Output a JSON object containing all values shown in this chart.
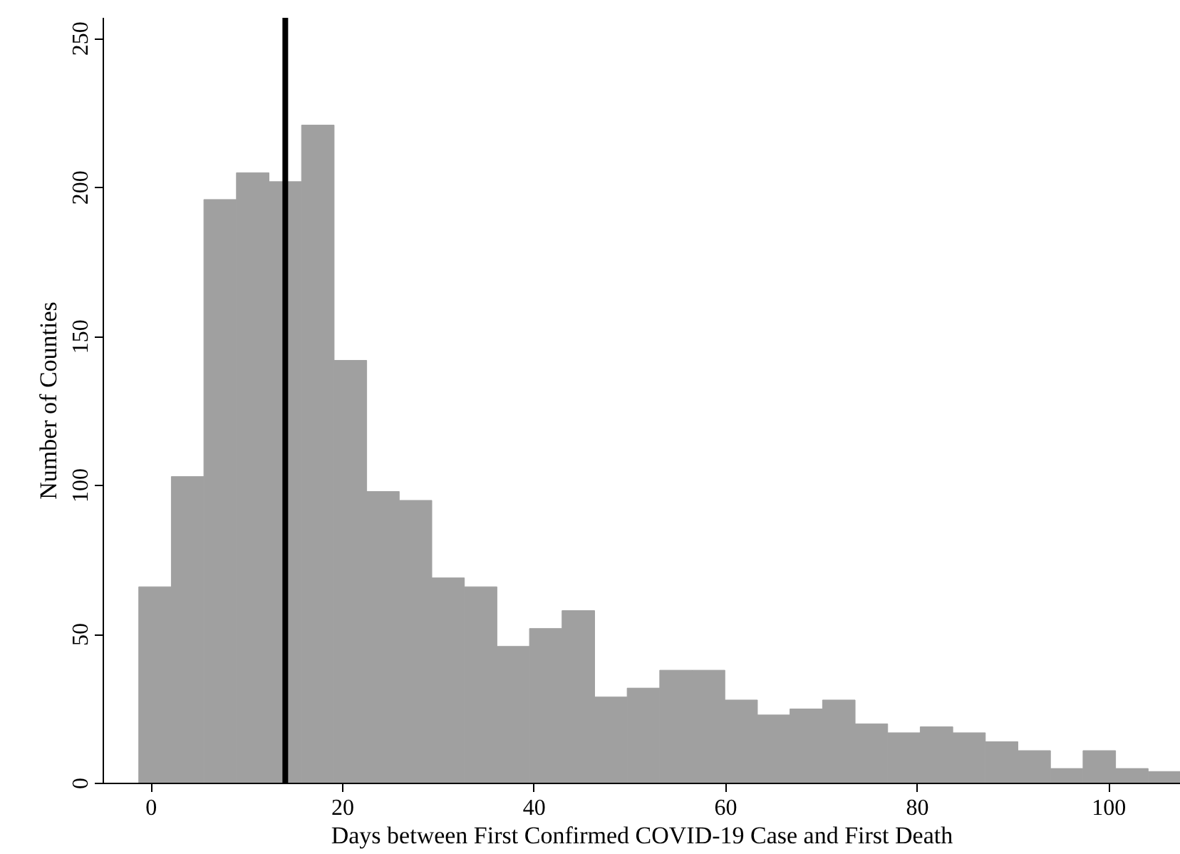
{
  "chart_data": {
    "type": "histogram",
    "xlabel": "Days between First Confirmed COVID-19 Case and First Death",
    "ylabel": "Number of Counties",
    "bins": [
      -1.3,
      2.1,
      5.5,
      8.9,
      12.3,
      15.7,
      19.1,
      22.5,
      25.9,
      29.3,
      32.7,
      36.1,
      39.5,
      42.9,
      46.3,
      49.7,
      53.1,
      56.5,
      59.9,
      63.3,
      66.7,
      70.1,
      73.5,
      76.9,
      80.3,
      83.7,
      87.1,
      90.5,
      93.9,
      97.3,
      100.7,
      104.1,
      107.5
    ],
    "values": [
      66,
      103,
      196,
      205,
      202,
      221,
      142,
      98,
      95,
      69,
      66,
      46,
      52,
      58,
      29,
      32,
      38,
      38,
      28,
      23,
      25,
      28,
      20,
      17,
      19,
      17,
      14,
      11,
      5,
      11,
      5,
      4
    ],
    "color": "#a0a0a0",
    "xlim": [
      -5,
      107.5
    ],
    "ylim": [
      0,
      257
    ],
    "xticks": [
      0,
      20,
      40,
      60,
      80,
      100
    ],
    "yticks": [
      0,
      50,
      100,
      150,
      200,
      250
    ],
    "ref_lines": [
      {
        "axis": "x",
        "value": 14,
        "color": "#000000",
        "line_style": "solid"
      }
    ],
    "grid": false
  }
}
